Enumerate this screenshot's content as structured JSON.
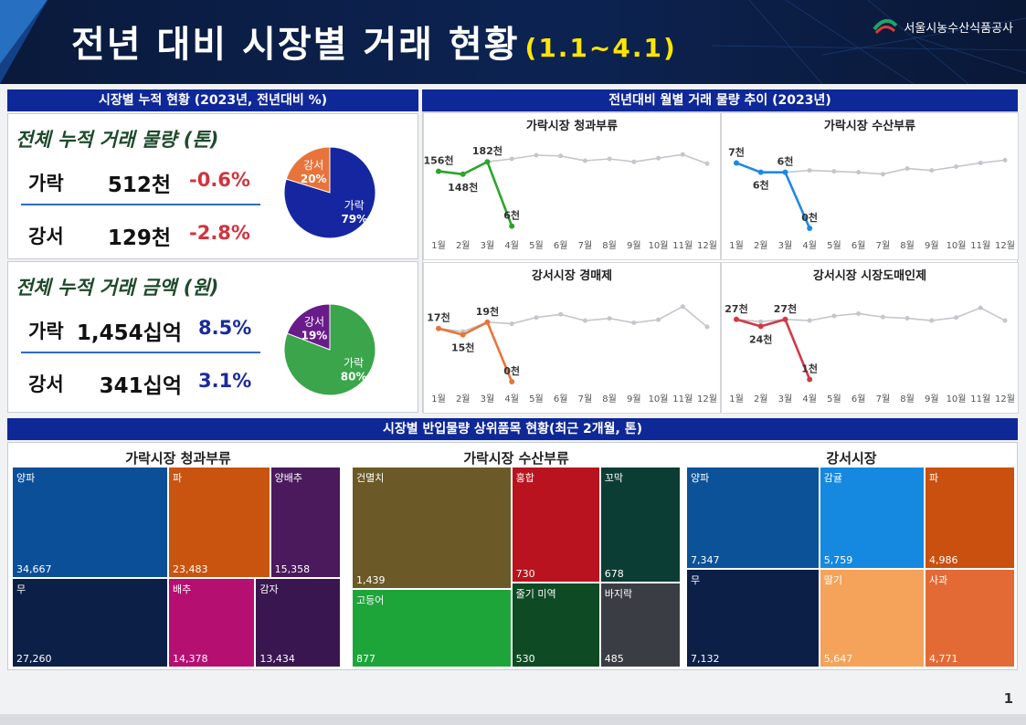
{
  "header": {
    "title": "전년 대비 시장별 거래 현황",
    "range": "(1.1~4.1)",
    "org": "서울시농수산식품공사"
  },
  "left_panel": {
    "bar_title": "시장별 누적 현황 (2023년, 전년대비 %)",
    "volume": {
      "heading": "전체 누적 거래 물량 (톤)",
      "rows": [
        {
          "name": "가락",
          "value": "512천",
          "pct": "-0.6%"
        },
        {
          "name": "강서",
          "value": "129천",
          "pct": "-2.8%"
        }
      ],
      "pie": [
        {
          "label": "가락",
          "pct": "79%",
          "value": 79,
          "color": "#1626a0"
        },
        {
          "label": "강서",
          "pct": "20%",
          "value": 20,
          "color": "#e8743b"
        }
      ],
      "pct_color": "#d0343f"
    },
    "amount": {
      "heading": "전체 누적 거래 금액 (원)",
      "rows": [
        {
          "name": "가락",
          "value": "1,454십억",
          "pct": "8.5%"
        },
        {
          "name": "강서",
          "value": "341십억",
          "pct": "3.1%"
        }
      ],
      "pie": [
        {
          "label": "가락",
          "pct": "80%",
          "value": 80,
          "color": "#3aa54a"
        },
        {
          "label": "강서",
          "pct": "19%",
          "value": 19,
          "color": "#6a1b8a"
        }
      ],
      "pct_color": "#1a2b9e"
    }
  },
  "right_panel": {
    "bar_title": "전년대비 월별 거래 물량 추이 (2023년)",
    "months": [
      "1월",
      "2월",
      "3월",
      "4월",
      "5월",
      "6월",
      "7월",
      "8월",
      "9월",
      "10월",
      "11월",
      "12월"
    ],
    "charts": [
      {
        "title": "가락시장 청과부류",
        "color": "#2aa52a",
        "prev": [
          156,
          148,
          182,
          190,
          200,
          198,
          185,
          190,
          182,
          192,
          202,
          177
        ],
        "curr": [
          156,
          148,
          182,
          6
        ],
        "labels": [
          "156천",
          "148천",
          "182천",
          "6천"
        ],
        "ylim": [
          0,
          230
        ]
      },
      {
        "title": "가락시장 수산부류",
        "color": "#1e88e5",
        "prev": [
          7,
          6,
          6,
          6.2,
          6.1,
          6.0,
          5.8,
          6.4,
          6.2,
          6.6,
          7.0,
          7.3
        ],
        "curr": [
          7,
          6,
          6,
          0
        ],
        "labels": [
          "7천",
          "6천",
          "6천",
          "0천"
        ],
        "ylim": [
          0,
          9
        ]
      },
      {
        "title": "강서시장 경매제",
        "color": "#e8743b",
        "prev": [
          17,
          16,
          19,
          18.5,
          20.5,
          21.5,
          19.5,
          20.2,
          18.8,
          19.8,
          24,
          17.5
        ],
        "curr": [
          17,
          15,
          19,
          0
        ],
        "labels": [
          "17천",
          "15천",
          "19천",
          "0천"
        ],
        "ylim": [
          0,
          28
        ]
      },
      {
        "title": "강서시장 시장도매인제",
        "color": "#cf3a45",
        "prev": [
          27,
          26,
          27,
          26.5,
          28.5,
          29.5,
          28,
          27.5,
          26.5,
          27.8,
          32,
          26.5
        ],
        "curr": [
          27,
          24,
          27,
          1
        ],
        "labels": [
          "27천",
          "24천",
          "27천",
          "1천"
        ],
        "ylim": [
          0,
          38
        ]
      }
    ]
  },
  "bottom_panel": {
    "bar_title": "시장별 반입물량 상위품목 현황(최근 2개월, 톤)",
    "treemaps": [
      {
        "title": "가락시장 청과부류",
        "items": [
          {
            "name": "양파",
            "value": "34,667",
            "color": "#0b4f98"
          },
          {
            "name": "무",
            "value": "27,260",
            "color": "#0c1f46"
          },
          {
            "name": "파",
            "value": "23,483",
            "color": "#c95410"
          },
          {
            "name": "배추",
            "value": "14,378",
            "color": "#b60f72"
          },
          {
            "name": "양배추",
            "value": "15,358",
            "color": "#4a1a5c"
          },
          {
            "name": "감자",
            "value": "13,434",
            "color": "#3a1650"
          }
        ]
      },
      {
        "title": "가락시장 수산부류",
        "items": [
          {
            "name": "건멸치",
            "value": "1,439",
            "color": "#6b5a28"
          },
          {
            "name": "고등어",
            "value": "877",
            "color": "#1ea53a"
          },
          {
            "name": "홍합",
            "value": "730",
            "color": "#b8131e"
          },
          {
            "name": "줄기 미역",
            "value": "530",
            "color": "#0e4b24"
          },
          {
            "name": "꼬막",
            "value": "678",
            "color": "#0c3d35"
          },
          {
            "name": "바지락",
            "value": "485",
            "color": "#3a3d44"
          }
        ]
      },
      {
        "title": "강서시장",
        "items": [
          {
            "name": "양파",
            "value": "7,347",
            "color": "#0b5298"
          },
          {
            "name": "무",
            "value": "7,132",
            "color": "#0c1f46"
          },
          {
            "name": "감귤",
            "value": "5,759",
            "color": "#1588e0"
          },
          {
            "name": "딸기",
            "value": "5,647",
            "color": "#f5a25a"
          },
          {
            "name": "파",
            "value": "4,986",
            "color": "#c9500f"
          },
          {
            "name": "사과",
            "value": "4,771",
            "color": "#e36a35"
          }
        ]
      }
    ]
  },
  "page_number": "1"
}
